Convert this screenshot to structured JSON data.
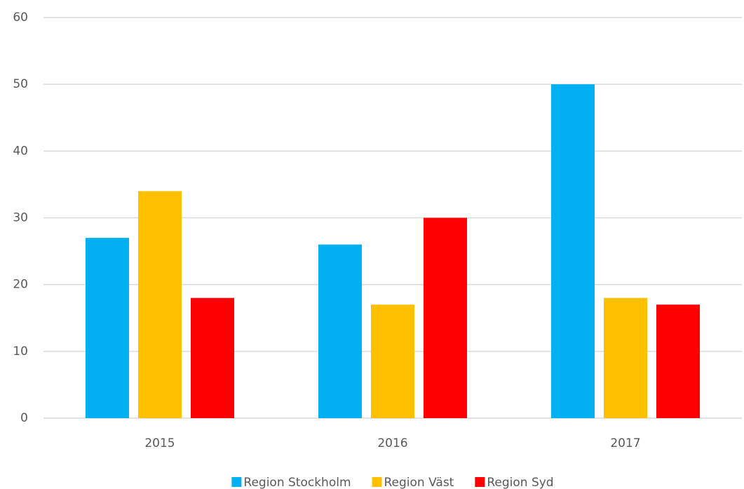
{
  "chart_data": {
    "type": "bar",
    "categories": [
      "2015",
      "2016",
      "2017"
    ],
    "series": [
      {
        "name": "Region Stockholm",
        "color": "#00b0f0",
        "values": [
          27,
          26,
          50
        ]
      },
      {
        "name": "Region Väst",
        "color": "#ffc000",
        "values": [
          34,
          17,
          18
        ]
      },
      {
        "name": "Region Syd",
        "color": "#ff0000",
        "values": [
          18,
          30,
          17
        ]
      }
    ],
    "ylim": [
      0,
      60
    ],
    "yticks": [
      0,
      10,
      20,
      30,
      40,
      50,
      60
    ],
    "grid": true,
    "legend": "bottom"
  }
}
